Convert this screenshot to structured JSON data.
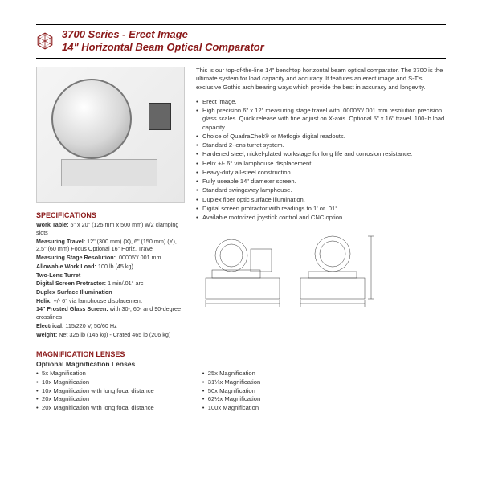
{
  "header": {
    "line1": "3700 Series - Erect Image",
    "line2": "14\" Horizontal Beam Optical Comparator"
  },
  "intro": "This is our top-of-the-line 14\" benchtop horizontal beam optical comparator. The 3700 is the ultimate system for load capacity and accuracy. It features an erect image and S-T's exclusive Gothic arch bearing ways which provide the best in accuracy and longevity.",
  "features": [
    "Erect image.",
    "High precision 6\" x 12\" measuring stage travel with .00005\"/.001 mm resolution precision glass scales. Quick release with fine adjust on X-axis. Optional 5\" x 16\" travel. 100-lb load capacity.",
    "Choice of QuadraChek® or Metlogix digital readouts.",
    "Standard 2-lens turret system.",
    "Hardened steel, nickel-plated workstage for long life and corrosion resistance.",
    "Helix +/- 6° via lamphouse displacement.",
    "Heavy-duty all-steel construction.",
    "Fully useable 14\" diameter screen.",
    "Standard swingaway lamphouse.",
    "Duplex fiber optic surface illumination.",
    "Digital screen protractor with readings to 1' or .01°.",
    "Available motorized joystick control and CNC option."
  ],
  "specs": {
    "heading": "SPECIFICATIONS",
    "items": [
      {
        "label": "Work Table:",
        "value": "5\" x 20\" (125 mm x 500 mm) w/2 clamping slots"
      },
      {
        "label": "Measuring Travel:",
        "value": "12\" (300 mm) (X), 6\" (150 mm) (Y), 2.5\" (60 mm) Focus Optional 16\" Horiz. Travel"
      },
      {
        "label": "Measuring Stage Resolution:",
        "value": ".00005\"/.001 mm"
      },
      {
        "label": "Allowable Work Load:",
        "value": "100 lb (45 kg)"
      },
      {
        "label": "Two-Lens Turret",
        "value": ""
      },
      {
        "label": "Digital Screen Protractor:",
        "value": "1 min/.01° arc"
      },
      {
        "label": "Duplex Surface Illumination",
        "value": ""
      },
      {
        "label": "Helix:",
        "value": "+/- 6° via lamphouse displacement"
      },
      {
        "label": "14\" Frosted Glass Screen:",
        "value": "with 30-, 60- and 90-degree crosslines"
      },
      {
        "label": "Electrical:",
        "value": "115/220 V, 50/60 Hz"
      },
      {
        "label": "Weight:",
        "value": "Net 325 lb (145 kg) - Crated 465 lb (206 kg)"
      }
    ]
  },
  "mag": {
    "heading": "MAGNIFICATION LENSES",
    "subheading": "Optional Magnification Lenses",
    "col1": [
      "5x Magnification",
      "10x Magnification",
      "10x Magnification with long focal distance",
      "20x Magnification",
      "20x Magnification with long focal distance"
    ],
    "col2": [
      "25x Magnification",
      "31¼x Magnification",
      "50x Magnification",
      "62½x Magnification",
      "100x Magnification"
    ]
  },
  "colors": {
    "brand": "#8b1a1a",
    "text": "#333333",
    "rule": "#000000"
  }
}
